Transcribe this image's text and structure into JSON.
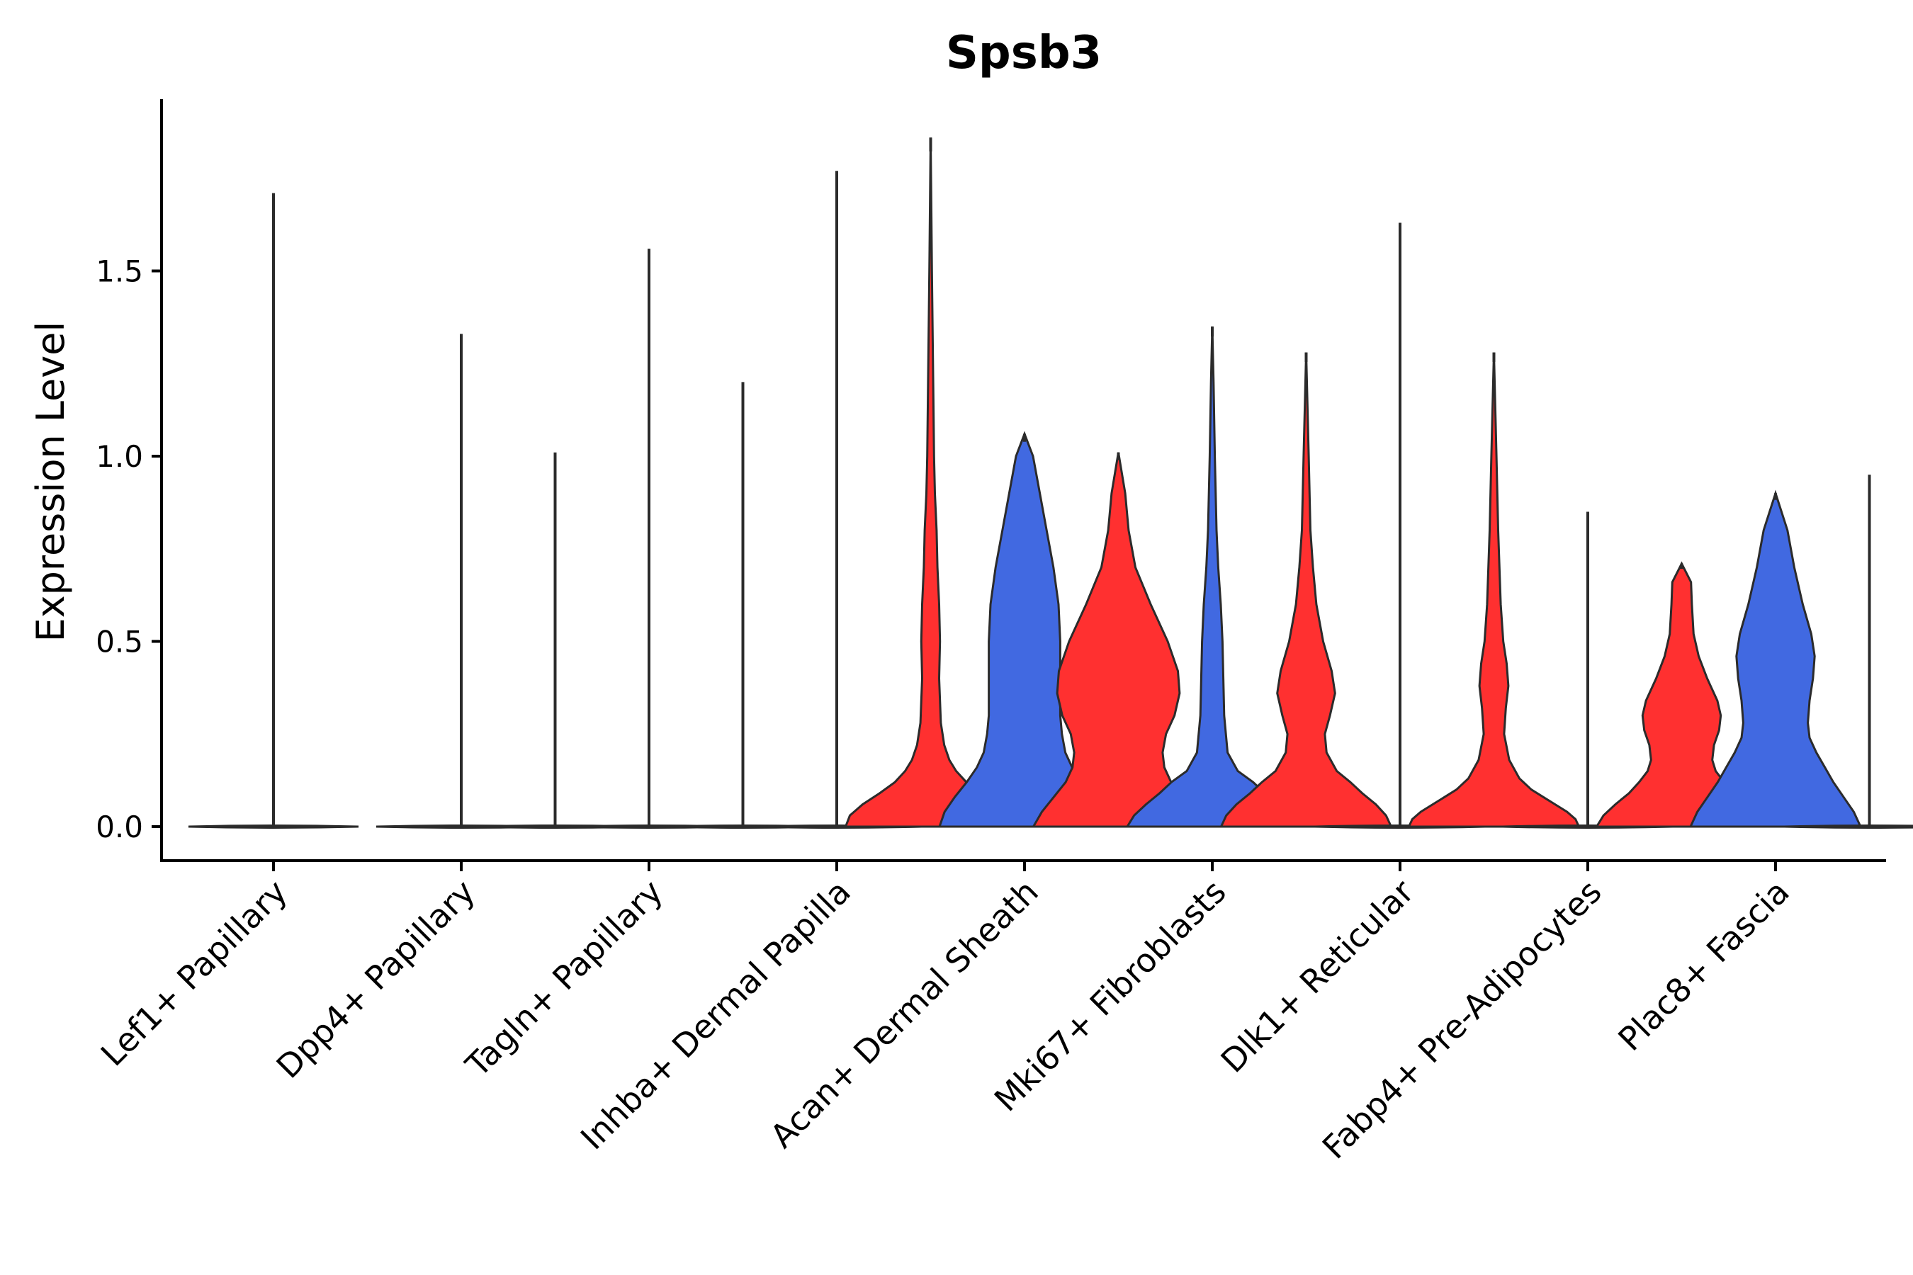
{
  "chart_data": {
    "type": "violin",
    "title": "Spsb3",
    "xlabel": "",
    "ylabel": "Expression Level",
    "ylim": [
      -0.09,
      1.96
    ],
    "yticks": [
      "0.0",
      "0.5",
      "1.0",
      "1.5"
    ],
    "ytick_values": [
      0.0,
      0.5,
      1.0,
      1.5
    ],
    "colors": {
      "blue": "#4169e1",
      "red": "#ff3030",
      "outline": "#2b2b2b"
    },
    "categories": [
      "Lef1+ Papillary",
      "Dpp4+ Papillary",
      "Tagln+ Papillary",
      "Inhba+ Dermal Papilla",
      "Acan+ Dermal Sheath",
      "Mki67+ Fibroblasts",
      "Dlk1+ Reticular",
      "Fabp4+ Pre-Adipocytes",
      "Plac8+ Fascia"
    ],
    "violins": [
      {
        "name": "v1",
        "slot": 0.0,
        "max": 1.71,
        "color": "blue",
        "filled": false,
        "shape": [
          [
            0,
            0.5
          ],
          [
            0.004,
            0.4
          ],
          [
            0.01,
            0
          ]
        ]
      },
      {
        "name": "v2",
        "slot": 1.0,
        "max": 1.33,
        "color": "blue",
        "filled": false,
        "shape": [
          [
            0,
            0.5
          ],
          [
            0.004,
            0.4
          ],
          [
            0.01,
            0
          ]
        ]
      },
      {
        "name": "v3",
        "slot": 1.5,
        "max": 1.01,
        "color": "red",
        "filled": false,
        "shape": [
          [
            0,
            0.5
          ],
          [
            0.004,
            0.4
          ],
          [
            0.01,
            0
          ]
        ]
      },
      {
        "name": "v4",
        "slot": 2.0,
        "max": 1.56,
        "color": "blue",
        "filled": false,
        "shape": [
          [
            0,
            0.5
          ],
          [
            0.004,
            0.4
          ],
          [
            0.01,
            0
          ]
        ]
      },
      {
        "name": "v5",
        "slot": 2.5,
        "max": 1.2,
        "color": "red",
        "filled": false,
        "shape": [
          [
            0,
            0.5
          ],
          [
            0.004,
            0.4
          ],
          [
            0.01,
            0
          ]
        ]
      },
      {
        "name": "v6",
        "slot": 3.0,
        "max": 1.77,
        "color": "blue",
        "filled": false,
        "shape": [
          [
            0,
            0.5
          ],
          [
            0.004,
            0.4
          ],
          [
            0.01,
            0
          ]
        ]
      },
      {
        "name": "v7",
        "slot": 3.5,
        "max": 1.86,
        "color": "red",
        "filled": true,
        "shape": [
          [
            0,
            1.0
          ],
          [
            0.03,
            0.95
          ],
          [
            0.06,
            0.8
          ],
          [
            0.09,
            0.6
          ],
          [
            0.12,
            0.42
          ],
          [
            0.15,
            0.3
          ],
          [
            0.18,
            0.22
          ],
          [
            0.22,
            0.16
          ],
          [
            0.28,
            0.12
          ],
          [
            0.4,
            0.1
          ],
          [
            0.5,
            0.11
          ],
          [
            0.6,
            0.1
          ],
          [
            0.7,
            0.08
          ],
          [
            0.8,
            0.07
          ],
          [
            0.9,
            0.05
          ],
          [
            1.0,
            0.04
          ],
          [
            1.2,
            0.03
          ],
          [
            1.5,
            0.015
          ],
          [
            1.86,
            0
          ]
        ]
      },
      {
        "name": "v8",
        "slot": 4.0,
        "max": 1.06,
        "color": "blue",
        "filled": true,
        "shape": [
          [
            0,
            1.0
          ],
          [
            0.04,
            0.94
          ],
          [
            0.08,
            0.82
          ],
          [
            0.12,
            0.68
          ],
          [
            0.16,
            0.56
          ],
          [
            0.2,
            0.48
          ],
          [
            0.25,
            0.44
          ],
          [
            0.3,
            0.42
          ],
          [
            0.4,
            0.42
          ],
          [
            0.5,
            0.42
          ],
          [
            0.6,
            0.4
          ],
          [
            0.7,
            0.34
          ],
          [
            0.8,
            0.26
          ],
          [
            0.9,
            0.18
          ],
          [
            1.0,
            0.1
          ],
          [
            1.06,
            0
          ]
        ]
      },
      {
        "name": "v9",
        "slot": 4.5,
        "max": 1.01,
        "color": "red",
        "filled": true,
        "shape": [
          [
            0,
            1.0
          ],
          [
            0.04,
            0.9
          ],
          [
            0.08,
            0.76
          ],
          [
            0.12,
            0.62
          ],
          [
            0.16,
            0.54
          ],
          [
            0.2,
            0.52
          ],
          [
            0.25,
            0.56
          ],
          [
            0.3,
            0.66
          ],
          [
            0.36,
            0.72
          ],
          [
            0.42,
            0.7
          ],
          [
            0.5,
            0.58
          ],
          [
            0.6,
            0.38
          ],
          [
            0.7,
            0.2
          ],
          [
            0.8,
            0.12
          ],
          [
            0.9,
            0.08
          ],
          [
            1.01,
            0
          ]
        ]
      },
      {
        "name": "v10",
        "slot": 5.0,
        "max": 1.35,
        "color": "blue",
        "filled": true,
        "shape": [
          [
            0,
            1.0
          ],
          [
            0.03,
            0.92
          ],
          [
            0.06,
            0.78
          ],
          [
            0.09,
            0.62
          ],
          [
            0.12,
            0.48
          ],
          [
            0.15,
            0.3
          ],
          [
            0.2,
            0.18
          ],
          [
            0.3,
            0.14
          ],
          [
            0.4,
            0.13
          ],
          [
            0.5,
            0.12
          ],
          [
            0.6,
            0.1
          ],
          [
            0.7,
            0.07
          ],
          [
            0.8,
            0.05
          ],
          [
            1.0,
            0.03
          ],
          [
            1.2,
            0.015
          ],
          [
            1.35,
            0
          ]
        ]
      },
      {
        "name": "v11",
        "slot": 5.5,
        "max": 1.28,
        "color": "red",
        "filled": true,
        "shape": [
          [
            0,
            1.0
          ],
          [
            0.03,
            0.94
          ],
          [
            0.06,
            0.82
          ],
          [
            0.09,
            0.66
          ],
          [
            0.12,
            0.52
          ],
          [
            0.15,
            0.36
          ],
          [
            0.2,
            0.24
          ],
          [
            0.25,
            0.22
          ],
          [
            0.3,
            0.28
          ],
          [
            0.36,
            0.34
          ],
          [
            0.42,
            0.3
          ],
          [
            0.5,
            0.2
          ],
          [
            0.6,
            0.12
          ],
          [
            0.7,
            0.08
          ],
          [
            0.8,
            0.05
          ],
          [
            1.0,
            0.03
          ],
          [
            1.28,
            0
          ]
        ]
      },
      {
        "name": "v12",
        "slot": 6.0,
        "max": 1.63,
        "color": "blue",
        "filled": false,
        "shape": [
          [
            0,
            0.5
          ],
          [
            0.004,
            0.4
          ],
          [
            0.01,
            0
          ]
        ]
      },
      {
        "name": "v13",
        "slot": 6.5,
        "max": 1.28,
        "color": "red",
        "filled": true,
        "shape": [
          [
            0,
            1.0
          ],
          [
            0.02,
            0.96
          ],
          [
            0.04,
            0.86
          ],
          [
            0.06,
            0.72
          ],
          [
            0.08,
            0.58
          ],
          [
            0.1,
            0.44
          ],
          [
            0.13,
            0.3
          ],
          [
            0.18,
            0.18
          ],
          [
            0.25,
            0.12
          ],
          [
            0.32,
            0.14
          ],
          [
            0.38,
            0.17
          ],
          [
            0.44,
            0.15
          ],
          [
            0.5,
            0.11
          ],
          [
            0.6,
            0.08
          ],
          [
            0.8,
            0.05
          ],
          [
            1.0,
            0.03
          ],
          [
            1.28,
            0
          ]
        ]
      },
      {
        "name": "v14",
        "slot": 7.0,
        "max": 0.85,
        "color": "blue",
        "filled": false,
        "shape": [
          [
            0,
            0.5
          ],
          [
            0.004,
            0.4
          ],
          [
            0.01,
            0
          ]
        ]
      },
      {
        "name": "v15",
        "slot": 7.5,
        "max": 0.71,
        "color": "red",
        "filled": true,
        "shape": [
          [
            0,
            1.0
          ],
          [
            0.03,
            0.92
          ],
          [
            0.06,
            0.78
          ],
          [
            0.09,
            0.62
          ],
          [
            0.12,
            0.5
          ],
          [
            0.15,
            0.4
          ],
          [
            0.18,
            0.36
          ],
          [
            0.22,
            0.38
          ],
          [
            0.26,
            0.44
          ],
          [
            0.3,
            0.46
          ],
          [
            0.34,
            0.42
          ],
          [
            0.4,
            0.3
          ],
          [
            0.46,
            0.2
          ],
          [
            0.52,
            0.14
          ],
          [
            0.6,
            0.12
          ],
          [
            0.66,
            0.11
          ],
          [
            0.71,
            0
          ]
        ]
      },
      {
        "name": "v16",
        "slot": 8.0,
        "max": 0.9,
        "color": "blue",
        "filled": true,
        "shape": [
          [
            0,
            1.0
          ],
          [
            0.04,
            0.92
          ],
          [
            0.08,
            0.8
          ],
          [
            0.12,
            0.68
          ],
          [
            0.16,
            0.58
          ],
          [
            0.2,
            0.48
          ],
          [
            0.24,
            0.4
          ],
          [
            0.28,
            0.38
          ],
          [
            0.34,
            0.4
          ],
          [
            0.4,
            0.44
          ],
          [
            0.46,
            0.46
          ],
          [
            0.52,
            0.42
          ],
          [
            0.6,
            0.32
          ],
          [
            0.7,
            0.22
          ],
          [
            0.8,
            0.14
          ],
          [
            0.9,
            0
          ]
        ]
      },
      {
        "name": "v17",
        "slot": 8.5,
        "max": 0.95,
        "color": "red",
        "filled": false,
        "shape": [
          [
            0,
            0.5
          ],
          [
            0.004,
            0.4
          ],
          [
            0.01,
            0
          ]
        ]
      }
    ]
  }
}
